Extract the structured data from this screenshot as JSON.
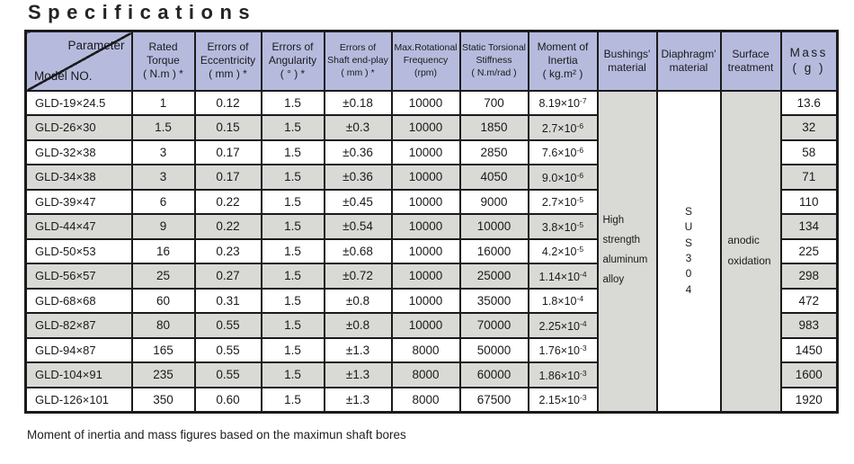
{
  "title": "Specifications",
  "footer_note": "Moment of inertia and mass figures based on the maximun shaft bores",
  "colors": {
    "header_bg": "#b6bbde",
    "alt_bg": "#d9d9d6",
    "border": "#1b1b1b",
    "text": "#1a1a1a"
  },
  "table": {
    "corner": {
      "top": "Parameter",
      "bottom": "Model NO."
    },
    "columns": [
      {
        "label": "Rated Torque\n( N.m ) *"
      },
      {
        "label": "Errors of\nEccentricity\n( mm ) *"
      },
      {
        "label": "Errors of\nAngularity\n( ° ) *"
      },
      {
        "label": "Errors of\nShaft end-play\n( mm ) *"
      },
      {
        "label": "Max.Rotational\nFrequency\n(rpm)"
      },
      {
        "label": "Static Torsional\nStiffness\n( N.m/rad )"
      },
      {
        "label": "Moment of\nInertia\n( kg.m² )"
      },
      {
        "label": "Bushings'\nmaterial"
      },
      {
        "label": "Diaphragm'\nmaterial"
      },
      {
        "label": "Surface\ntreatment"
      },
      {
        "label": "Mass\n( g )"
      }
    ],
    "merged": {
      "bushings_material": "High strength aluminum alloy",
      "diaphragm_material": "SUS304",
      "surface_treatment": "anodic oxidation"
    },
    "rows": [
      {
        "model": "GLD-19×24.5",
        "torque": "1",
        "eccentricity": "0.12",
        "angularity": "1.5",
        "end_play": "±0.18",
        "frequency": "10000",
        "stiffness": "700",
        "inertia": {
          "m": "8.19",
          "e": "-7"
        },
        "mass": "13.6"
      },
      {
        "model": "GLD-26×30",
        "torque": "1.5",
        "eccentricity": "0.15",
        "angularity": "1.5",
        "end_play": "±0.3",
        "frequency": "10000",
        "stiffness": "1850",
        "inertia": {
          "m": "2.7",
          "e": "-6"
        },
        "mass": "32"
      },
      {
        "model": "GLD-32×38",
        "torque": "3",
        "eccentricity": "0.17",
        "angularity": "1.5",
        "end_play": "±0.36",
        "frequency": "10000",
        "stiffness": "2850",
        "inertia": {
          "m": "7.6",
          "e": "-6"
        },
        "mass": "58"
      },
      {
        "model": "GLD-34×38",
        "torque": "3",
        "eccentricity": "0.17",
        "angularity": "1.5",
        "end_play": "±0.36",
        "frequency": "10000",
        "stiffness": "4050",
        "inertia": {
          "m": "9.0",
          "e": "-6"
        },
        "mass": "71"
      },
      {
        "model": "GLD-39×47",
        "torque": "6",
        "eccentricity": "0.22",
        "angularity": "1.5",
        "end_play": "±0.45",
        "frequency": "10000",
        "stiffness": "9000",
        "inertia": {
          "m": "2.7",
          "e": "-5"
        },
        "mass": "110"
      },
      {
        "model": "GLD-44×47",
        "torque": "9",
        "eccentricity": "0.22",
        "angularity": "1.5",
        "end_play": "±0.54",
        "frequency": "10000",
        "stiffness": "10000",
        "inertia": {
          "m": "3.8",
          "e": "-5"
        },
        "mass": "134"
      },
      {
        "model": "GLD-50×53",
        "torque": "16",
        "eccentricity": "0.23",
        "angularity": "1.5",
        "end_play": "±0.68",
        "frequency": "10000",
        "stiffness": "16000",
        "inertia": {
          "m": "4.2",
          "e": "-5"
        },
        "mass": "225"
      },
      {
        "model": "GLD-56×57",
        "torque": "25",
        "eccentricity": "0.27",
        "angularity": "1.5",
        "end_play": "±0.72",
        "frequency": "10000",
        "stiffness": "25000",
        "inertia": {
          "m": "1.14",
          "e": "-4"
        },
        "mass": "298"
      },
      {
        "model": "GLD-68×68",
        "torque": "60",
        "eccentricity": "0.31",
        "angularity": "1.5",
        "end_play": "±0.8",
        "frequency": "10000",
        "stiffness": "35000",
        "inertia": {
          "m": "1.8",
          "e": "-4"
        },
        "mass": "472"
      },
      {
        "model": "GLD-82×87",
        "torque": "80",
        "eccentricity": "0.55",
        "angularity": "1.5",
        "end_play": "±0.8",
        "frequency": "10000",
        "stiffness": "70000",
        "inertia": {
          "m": "2.25",
          "e": "-4"
        },
        "mass": "983"
      },
      {
        "model": "GLD-94×87",
        "torque": "165",
        "eccentricity": "0.55",
        "angularity": "1.5",
        "end_play": "±1.3",
        "frequency": "8000",
        "stiffness": "50000",
        "inertia": {
          "m": "1.76",
          "e": "-3"
        },
        "mass": "1450"
      },
      {
        "model": "GLD-104×91",
        "torque": "235",
        "eccentricity": "0.55",
        "angularity": "1.5",
        "end_play": "±1.3",
        "frequency": "8000",
        "stiffness": "60000",
        "inertia": {
          "m": "1.86",
          "e": "-3"
        },
        "mass": "1600"
      },
      {
        "model": "GLD-126×101",
        "torque": "350",
        "eccentricity": "0.60",
        "angularity": "1.5",
        "end_play": "±1.3",
        "frequency": "8000",
        "stiffness": "67500",
        "inertia": {
          "m": "2.15",
          "e": "-3"
        },
        "mass": "1920"
      }
    ]
  }
}
